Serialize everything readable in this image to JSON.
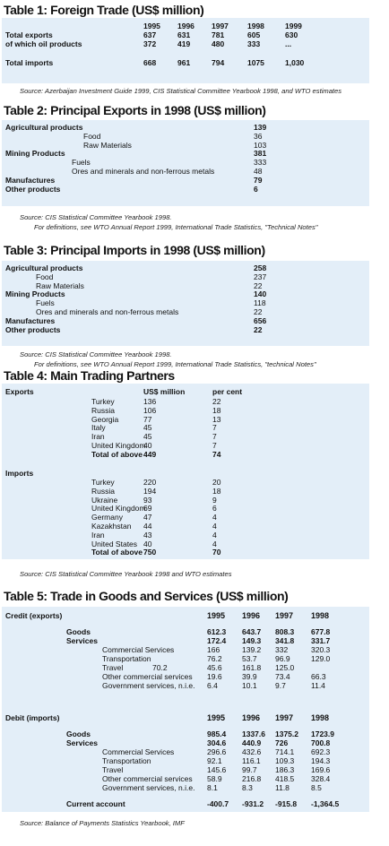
{
  "tables": [
    {
      "title": "Table 1: Foreign Trade (US$ million)",
      "sections": [
        {
          "header": [
            "1995",
            "1996",
            "1997",
            "1998",
            "1999"
          ],
          "rows": [
            {
              "label": "Total exports",
              "values": [
                "637",
                "631",
                "781",
                "605",
                "630"
              ]
            },
            {
              "label": "of which oil products",
              "values": [
                "372",
                "419",
                "480",
                "333",
                "..."
              ]
            },
            {
              "label": "Total imports",
              "values": [
                "668",
                "961",
                "794",
                "1075",
                "1,030"
              ]
            }
          ]
        }
      ],
      "source": [
        "Source:  Azerbaijan Investment Guide 1999, CIS Statistical Committee Yearbook 1998, and WTO estimates"
      ]
    },
    {
      "title": "Table 2: Principal Exports in 1998 (US$ million)",
      "sections": [
        {
          "rows": [
            {
              "label": "Agricultural products",
              "values": [
                "139"
              ]
            },
            {
              "label": "Food",
              "values": [
                "36"
              ]
            },
            {
              "label": "Raw Materials",
              "values": [
                "103"
              ]
            },
            {
              "label": "Mining Products",
              "values": [
                "381"
              ]
            },
            {
              "label": "Fuels",
              "values": [
                "333"
              ]
            },
            {
              "label": "Ores and minerals and non-ferrous metals",
              "values": [
                "48"
              ]
            },
            {
              "label": "Manufactures",
              "values": [
                "79"
              ]
            },
            {
              "label": "Other products",
              "values": [
                "6"
              ]
            }
          ]
        }
      ],
      "source": [
        "Source:  CIS Statistical Committee Yearbook 1998.",
        "For definitions, see WTO Annual Report 1999, International Trade Statistics, \"Technical Notes\""
      ]
    },
    {
      "title": "Table 3: Principal Imports in 1998 (US$ million)",
      "sections": [
        {
          "rows": [
            {
              "label": "Agricultural products",
              "values": [
                "258"
              ]
            },
            {
              "label": "Food",
              "values": [
                "237"
              ]
            },
            {
              "label": "Raw Materials",
              "values": [
                "22"
              ]
            },
            {
              "label": "Mining Products",
              "values": [
                "140"
              ]
            },
            {
              "label": "Fuels",
              "values": [
                "118"
              ]
            },
            {
              "label": "Ores and minerals and non-ferrous metals",
              "values": [
                "22"
              ]
            },
            {
              "label": "Manufactures",
              "values": [
                "656"
              ]
            },
            {
              "label": "Other products",
              "values": [
                "22"
              ]
            }
          ]
        }
      ],
      "source": [
        "Source:  CIS Statistical Committee Yearbook 1998.",
        "For definitions, see WTO Annual Report 1999, International Trade Statistics, \"technical Notes\""
      ]
    },
    {
      "title": "Table 4: Main Trading Partners",
      "sections": [
        {
          "heading": "Exports",
          "header": [
            "US$ million",
            "per cent"
          ],
          "rows": [
            {
              "label": "Turkey",
              "values": [
                "136",
                "22"
              ]
            },
            {
              "label": "Russia",
              "values": [
                "106",
                "18"
              ]
            },
            {
              "label": "Georgia",
              "values": [
                "77",
                "13"
              ]
            },
            {
              "label": "Italy",
              "values": [
                "45",
                "7"
              ]
            },
            {
              "label": "Iran",
              "values": [
                "45",
                "7"
              ]
            },
            {
              "label": "United Kingdom",
              "values": [
                "40",
                "7"
              ]
            },
            {
              "label": "Total of above",
              "values": [
                "449",
                "74"
              ]
            }
          ]
        },
        {
          "heading": "Imports",
          "rows": [
            {
              "label": "Turkey",
              "values": [
                "220",
                "20"
              ]
            },
            {
              "label": "Russia",
              "values": [
                "194",
                "18"
              ]
            },
            {
              "label": "Ukraine",
              "values": [
                "93",
                "9"
              ]
            },
            {
              "label": "United Kingdom",
              "values": [
                "69",
                "6"
              ]
            },
            {
              "label": "Germany",
              "values": [
                "47",
                "4"
              ]
            },
            {
              "label": "Kazakhstan",
              "values": [
                "44",
                "4"
              ]
            },
            {
              "label": "Iran",
              "values": [
                "43",
                "4"
              ]
            },
            {
              "label": "United States",
              "values": [
                "40",
                "4"
              ]
            },
            {
              "label": "Total of above",
              "values": [
                "750",
                "70"
              ]
            }
          ]
        }
      ],
      "source": [
        "Source:  CIS Statistical Committee Yearbook 1998 and WTO estimates"
      ]
    },
    {
      "title": "Table 5: Trade in Goods and Services (US$ million)",
      "sections": [
        {
          "heading": "Credit (exports)",
          "header": [
            "1995",
            "1996",
            "1997",
            "1998"
          ],
          "rows": [
            {
              "label": "Goods",
              "values": [
                "612.3",
                "643.7",
                "808.3",
                "677.8"
              ]
            },
            {
              "label": "Services",
              "values": [
                "172.4",
                "149.3",
                "341.8",
                "331.7"
              ]
            },
            {
              "label": "Commercial Services",
              "values": [
                "166",
                "139.2",
                "332",
                "320.3"
              ]
            },
            {
              "label": "Transportation",
              "values": [
                "76.2",
                "53.7",
                "96.9",
                "129.0"
              ]
            },
            {
              "label": "Travel",
              "label_value": "70.2",
              "values": [
                "45.6",
                "161.8",
                "125.0",
                null
              ]
            },
            {
              "label": "Other commercial services",
              "values": [
                "19.6",
                "39.9",
                "73.4",
                "66.3"
              ]
            },
            {
              "label": "Government services, n.i.e.",
              "values": [
                "6.4",
                "10.1",
                "9.7",
                "11.4"
              ]
            }
          ]
        },
        {
          "heading": "Debit (imports)",
          "header": [
            "1995",
            "1996",
            "1997",
            "1998"
          ],
          "rows": [
            {
              "label": "Goods",
              "values": [
                "985.4",
                "1337.6",
                "1375.2",
                "1723.9"
              ]
            },
            {
              "label": "Services",
              "values": [
                "304.6",
                "440.9",
                "726",
                "700.8"
              ]
            },
            {
              "label": "Commercial Services",
              "values": [
                "296.6",
                "432.6",
                "714.1",
                "692.3"
              ]
            },
            {
              "label": "Transportation",
              "values": [
                "92.1",
                "116.1",
                "109.3",
                "194.3"
              ]
            },
            {
              "label": "Travel",
              "values": [
                "145.6",
                "99.7",
                "186.3",
                "169.6"
              ]
            },
            {
              "label": "Other commercial services",
              "values": [
                "58.9",
                "216.8",
                "418.5",
                "328.4"
              ]
            },
            {
              "label": "Government services, n.i.e.",
              "values": [
                "8.1",
                "8.3",
                "11.8",
                "8.5"
              ]
            },
            {
              "label": "Current account",
              "values": [
                "-400.7",
                "-931.2",
                "-915.8",
                "-1,364.5"
              ]
            }
          ]
        }
      ],
      "source": [
        "Source: Balance of Payments Statistics Yearbook, IMF"
      ]
    }
  ]
}
